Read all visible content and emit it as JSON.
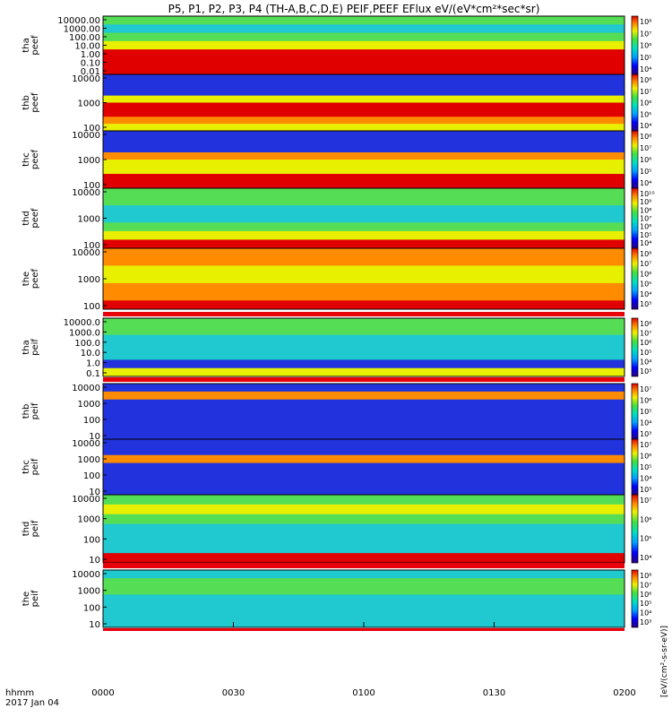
{
  "title": "P5, P1, P2, P3, P4 (TH-A,B,C,D,E) PEIF,PEEF EFlux eV/(eV*cm²*sec*sr)",
  "time_axis": {
    "ticks": [
      "0000",
      "0030",
      "0100",
      "0130",
      "0200"
    ],
    "label_line1": "hhmm",
    "label_line2": "2017 Jan 04"
  },
  "colorbar_unit": "[eV/(cm²-s-sr-eV)]",
  "colors": {
    "frame": "#000000",
    "band_red": "#e8000b"
  },
  "chart_data": [
    {
      "type": "heatmap",
      "panel": "tha-peef",
      "ylabel": [
        "tha",
        "peef"
      ],
      "yticks": [
        "10000.00",
        "1000.00",
        "100.00",
        "10.00",
        "1.00",
        "0.10",
        "0.01"
      ],
      "scale": "log",
      "colorbar_ticks": [
        "10⁸",
        "10⁷",
        "10⁶",
        "10⁵",
        "10⁴"
      ],
      "rows": [
        "green",
        "teal",
        "green",
        "yellow",
        "red",
        "red",
        "red"
      ]
    },
    {
      "type": "heatmap",
      "panel": "thb-peef",
      "ylabel": [
        "thb",
        "peef"
      ],
      "yticks": [
        "10000",
        "1000",
        "100"
      ],
      "scale": "log",
      "colorbar_ticks": [
        "10⁸",
        "10⁷",
        "10⁶",
        "10⁵",
        "10⁴"
      ],
      "rows": [
        "blue",
        "blue",
        "blue",
        "yellow",
        "red",
        "red",
        "orange",
        "yellow"
      ]
    },
    {
      "type": "heatmap",
      "panel": "thc-peef",
      "ylabel": [
        "thc",
        "peef"
      ],
      "yticks": [
        "10000",
        "1000",
        "100"
      ],
      "scale": "log",
      "colorbar_ticks": [
        "10⁸",
        "10⁷",
        "10⁶",
        "10⁵",
        "10⁴"
      ],
      "rows": [
        "blue",
        "blue",
        "blue",
        "orange",
        "yellow",
        "yellow",
        "red",
        "red"
      ]
    },
    {
      "type": "heatmap",
      "panel": "thd-peef",
      "ylabel": [
        "thd",
        "peef"
      ],
      "yticks": [
        "10000",
        "1000",
        "100"
      ],
      "scale": "log",
      "colorbar_ticks": [
        "10¹⁰",
        "10⁹",
        "10⁸",
        "10⁷",
        "10⁶",
        "10⁵",
        "10⁴"
      ],
      "rows": [
        "green",
        "green",
        "teal",
        "teal",
        "green",
        "yellow",
        "red"
      ]
    },
    {
      "type": "heatmap",
      "panel": "the-peef",
      "ylabel": [
        "the",
        "peef"
      ],
      "yticks": [
        "10000",
        "1000",
        "100"
      ],
      "scale": "log",
      "colorbar_ticks": [
        "10⁸",
        "10⁷",
        "10⁶",
        "10⁵",
        "10⁴",
        "10³"
      ],
      "rows": [
        "orange",
        "orange",
        "yellow",
        "yellow",
        "orange",
        "orange",
        "red"
      ]
    },
    {
      "type": "heatmap",
      "panel": "tha-peif",
      "ylabel": [
        "tha",
        "peif"
      ],
      "yticks": [
        "10000.0",
        "1000.0",
        "100.0",
        "10.0",
        "1.0",
        "0.1"
      ],
      "scale": "log",
      "colorbar_ticks": [
        "10⁸",
        "10⁷",
        "10⁶",
        "10⁵",
        "10⁴",
        "10³"
      ],
      "rows": [
        "green",
        "green",
        "teal",
        "teal",
        "teal",
        "blue",
        "yellow"
      ]
    },
    {
      "type": "heatmap",
      "panel": "thb-peif",
      "ylabel": [
        "thb",
        "peif"
      ],
      "yticks": [
        "10000",
        "1000",
        "100",
        "10"
      ],
      "scale": "log",
      "colorbar_ticks": [
        "10⁷",
        "10⁶",
        "10⁵",
        "10⁴",
        "10³"
      ],
      "rows": [
        "blue",
        "orange",
        "blue",
        "blue",
        "blue",
        "blue",
        "blue"
      ]
    },
    {
      "type": "heatmap",
      "panel": "thc-peif",
      "ylabel": [
        "thc",
        "peif"
      ],
      "yticks": [
        "10000",
        "1000",
        "100",
        "10"
      ],
      "scale": "log",
      "colorbar_ticks": [
        "10⁷",
        "10⁶",
        "10⁵",
        "10⁴",
        "10³"
      ],
      "rows": [
        "blue",
        "blue",
        "orange",
        "blue",
        "blue",
        "blue",
        "blue"
      ]
    },
    {
      "type": "heatmap",
      "panel": "thd-peif",
      "ylabel": [
        "thd",
        "peif"
      ],
      "yticks": [
        "10000",
        "1000",
        "100",
        "10"
      ],
      "scale": "log",
      "colorbar_ticks": [
        "10⁷",
        "10⁶",
        "10⁵",
        "10⁴"
      ],
      "rows": [
        "green",
        "yellow",
        "green",
        "teal",
        "teal",
        "teal",
        "red"
      ]
    },
    {
      "type": "heatmap",
      "panel": "the-peif",
      "ylabel": [
        "the",
        "peif"
      ],
      "yticks": [
        "10000",
        "1000",
        "100",
        "10"
      ],
      "scale": "log",
      "colorbar_ticks": [
        "10⁸",
        "10⁷",
        "10⁶",
        "10⁵",
        "10⁴",
        "10³"
      ],
      "rows": [
        "teal",
        "green",
        "green",
        "teal",
        "teal",
        "teal",
        "teal"
      ]
    }
  ]
}
